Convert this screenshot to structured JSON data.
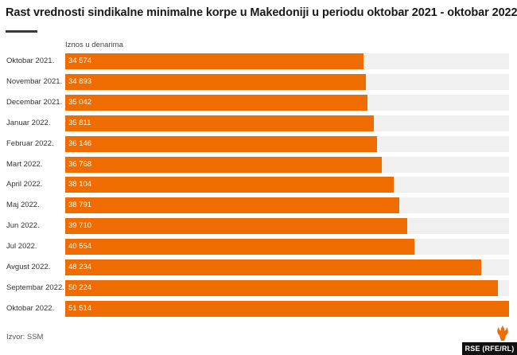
{
  "title": "Rast vrednosti sindikalne minimalne korpe u Makedoniji u periodu oktobar 2021 - oktobar 2022.",
  "unit_label": "Iznos u denarima",
  "source": "Izvor: SSM",
  "logo_text": "RSE (RFE/RL)",
  "colors": {
    "bar": "#ee6c00",
    "track": "#f0f0f0"
  },
  "chart_data": {
    "type": "bar",
    "orientation": "horizontal",
    "title": "Rast vrednosti sindikalne minimalne korpe u Makedoniji u periodu oktobar 2021 - oktobar 2022.",
    "ylabel": "Iznos u denarima",
    "categories": [
      "Oktobar 2021.",
      "Novembar 2021.",
      "Decembar 2021.",
      "Januar 2022.",
      "Februar 2022.",
      "Mart 2022.",
      "April 2022.",
      "Maj 2022.",
      "Jun 2022.",
      "Jul 2022.",
      "Avgust 2022.",
      "Septembar 2022.",
      "Oktobar 2022."
    ],
    "values": [
      34574,
      34893,
      35042,
      35811,
      36146,
      36768,
      38104,
      38791,
      39710,
      40554,
      48234,
      50224,
      51514
    ],
    "value_labels": [
      "34 574",
      "34 893",
      "35 042",
      "35 811",
      "36 146",
      "36 768",
      "38 104",
      "38 791",
      "39 710",
      "40 554",
      "48 234",
      "50 224",
      "51 514"
    ],
    "xlim": [
      0,
      51514
    ],
    "grid": false,
    "legend": "none"
  }
}
